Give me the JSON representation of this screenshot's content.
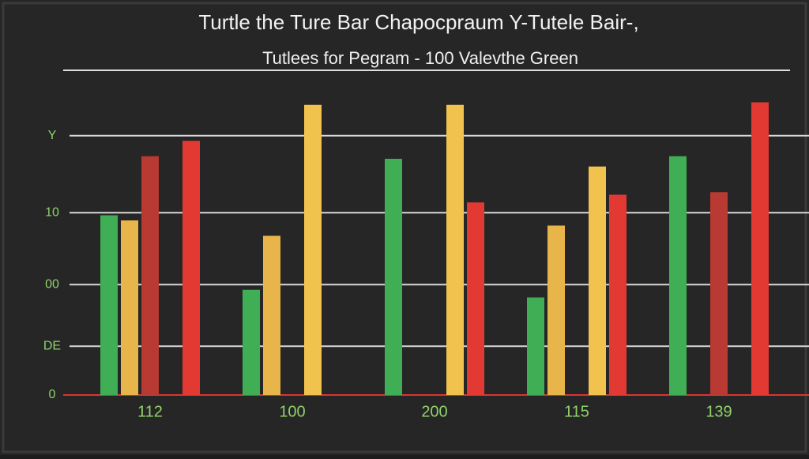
{
  "chart_data": {
    "type": "bar",
    "title": "Turtle the Ture Bar Chapocpraum Y-Tutele Bair-,",
    "subtitle": "Tutlees for Pegram - 100 Valevthe Green",
    "categories": [
      "112",
      "100",
      "200",
      "115",
      "139"
    ],
    "series": [
      {
        "color": "#3fae55",
        "values": [
          70,
          41,
          92,
          38,
          93
        ]
      },
      {
        "color": "#e8b54a",
        "values": [
          68,
          62,
          null,
          66,
          null
        ]
      },
      {
        "color": "#b83a32",
        "values": [
          93,
          null,
          null,
          null,
          79
        ]
      },
      {
        "color": "#f2c24e",
        "values": [
          null,
          113,
          113,
          89,
          null
        ]
      },
      {
        "color": "#e23a33",
        "values": [
          99,
          null,
          75,
          78,
          114
        ]
      }
    ],
    "ylim": [
      0,
      120
    ],
    "yticks": [
      0,
      {
        "value": 19,
        "label": "DE"
      },
      {
        "value": 43,
        "label": "00"
      },
      {
        "value": 71,
        "label": "10"
      },
      {
        "value": 101,
        "label": "Y"
      }
    ],
    "grid": true
  }
}
